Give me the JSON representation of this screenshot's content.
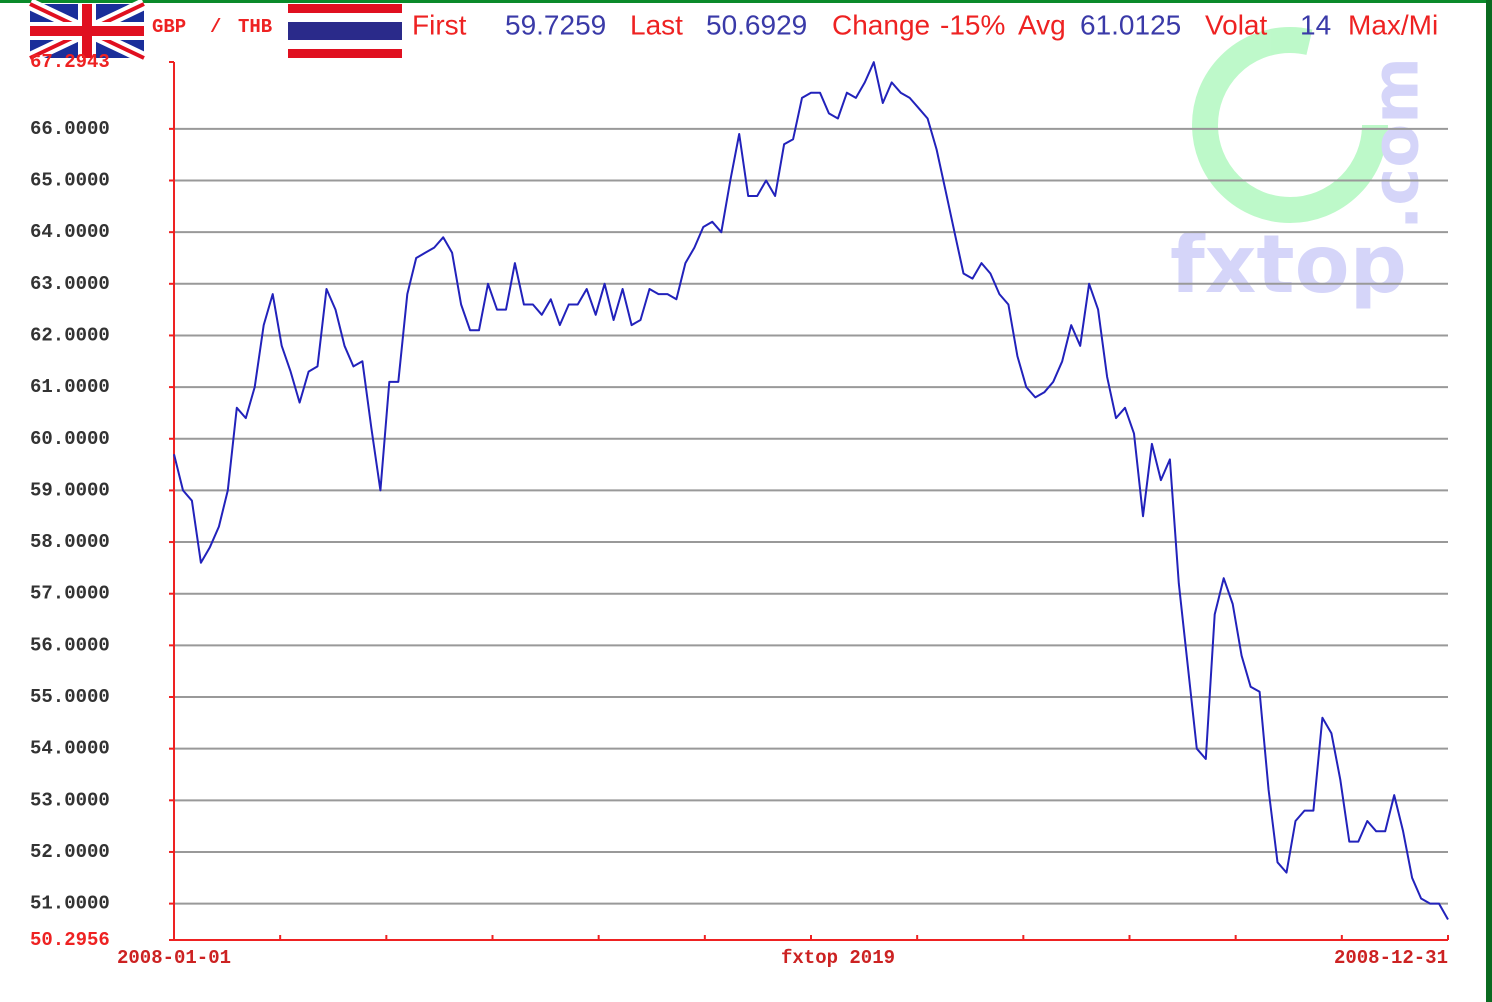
{
  "chart_data": {
    "type": "line",
    "header": {
      "base": "GBP",
      "separator": "/",
      "quote": "THB",
      "stats": [
        {
          "label": "First",
          "value": "59.7259"
        },
        {
          "label": "Last",
          "value": "50.6929"
        },
        {
          "label": "Change",
          "value": "-15%"
        },
        {
          "label": "Avg",
          "value": "61.0125"
        },
        {
          "label": "Volat",
          "value": "14"
        },
        {
          "label": "Max/Mi",
          "value": ""
        }
      ]
    },
    "credit": "fxtop 2019",
    "watermark": {
      "name": "fxtop",
      "domain": ".com"
    },
    "color": "#2222bb",
    "ylim": [
      50.2956,
      67.2943
    ],
    "yticks": [
      50.2956,
      {
        "value": 51,
        "label": "51.0000"
      },
      {
        "value": 52,
        "label": "52.0000"
      },
      {
        "value": 53,
        "label": "53.0000"
      },
      {
        "value": 54,
        "label": "54.0000"
      },
      {
        "value": 55,
        "label": "55.0000"
      },
      {
        "value": 56,
        "label": "56.0000"
      },
      {
        "value": 57,
        "label": "57.0000"
      },
      {
        "value": 58,
        "label": "58.0000"
      },
      {
        "value": 59,
        "label": "59.0000"
      },
      {
        "value": 60,
        "label": "60.0000"
      },
      {
        "value": 61,
        "label": "61.0000"
      },
      {
        "value": 62,
        "label": "62.0000"
      },
      {
        "value": 63,
        "label": "63.0000"
      },
      {
        "value": 64,
        "label": "64.0000"
      },
      {
        "value": 65,
        "label": "65.0000"
      },
      {
        "value": 66,
        "label": "66.0000"
      },
      67.2943
    ],
    "grid": true,
    "categories": [
      "2008-01-01",
      null,
      null,
      null,
      null,
      null,
      null,
      null,
      null,
      null,
      null,
      null,
      null,
      null,
      null,
      null,
      null,
      null,
      null,
      null,
      null,
      null,
      null,
      null,
      null,
      null,
      null,
      null,
      null,
      null,
      null,
      null,
      null,
      null,
      null,
      null,
      null,
      null,
      null,
      null,
      null,
      null,
      null,
      null,
      null,
      null,
      null,
      null,
      null,
      null,
      null,
      null,
      null,
      null,
      null,
      null,
      null,
      null,
      null,
      null,
      null,
      null,
      null,
      null,
      null,
      null,
      null,
      null,
      null,
      null,
      null,
      null,
      null,
      null,
      null,
      null,
      null,
      null,
      null,
      null,
      null,
      null,
      null,
      null,
      null,
      null,
      null,
      null,
      null,
      null,
      null,
      null,
      null,
      null,
      null,
      null,
      null,
      null,
      null,
      null,
      null,
      null,
      null,
      null,
      null,
      null,
      null,
      null,
      null,
      null,
      null,
      null,
      null,
      null,
      null,
      null,
      null,
      null,
      null,
      null,
      null,
      null,
      null,
      null,
      null,
      null,
      null,
      null,
      null,
      null,
      null,
      null,
      null,
      null,
      null,
      null,
      null,
      null,
      null,
      null,
      null,
      null,
      "2008-12-31"
    ],
    "values": [
      59.7,
      59.0,
      58.8,
      57.6,
      57.9,
      58.3,
      59.0,
      60.6,
      60.4,
      61.0,
      62.2,
      62.8,
      61.8,
      61.3,
      60.7,
      61.3,
      61.4,
      62.9,
      62.5,
      61.8,
      61.4,
      61.5,
      60.2,
      59.0,
      61.1,
      61.1,
      62.8,
      63.5,
      63.6,
      63.7,
      63.9,
      63.6,
      62.6,
      62.1,
      62.1,
      63.0,
      62.5,
      62.5,
      63.4,
      62.6,
      62.6,
      62.4,
      62.7,
      62.2,
      62.6,
      62.6,
      62.9,
      62.4,
      63.0,
      62.3,
      62.9,
      62.2,
      62.3,
      62.9,
      62.8,
      62.8,
      62.7,
      63.4,
      63.7,
      64.1,
      64.2,
      64.0,
      65.0,
      65.9,
      64.7,
      64.7,
      65.0,
      64.7,
      65.7,
      65.8,
      66.6,
      66.7,
      66.7,
      66.3,
      66.2,
      66.7,
      66.6,
      66.9,
      67.29,
      66.5,
      66.9,
      66.7,
      66.6,
      66.4,
      66.2,
      65.6,
      64.8,
      64.0,
      63.2,
      63.1,
      63.4,
      63.2,
      62.8,
      62.6,
      61.6,
      61.0,
      60.8,
      60.9,
      61.1,
      61.5,
      62.2,
      61.8,
      63.0,
      62.5,
      61.2,
      60.4,
      60.6,
      60.1,
      58.5,
      59.9,
      59.2,
      59.6,
      57.2,
      55.6,
      54.0,
      53.8,
      56.6,
      57.3,
      56.8,
      55.8,
      55.2,
      55.1,
      53.2,
      51.8,
      51.6,
      52.6,
      52.8,
      52.8,
      54.6,
      54.3,
      53.4,
      52.2,
      52.2,
      52.6,
      52.4,
      52.4,
      53.1,
      52.4,
      51.5,
      51.1,
      51.0,
      51.0,
      50.6929
    ]
  }
}
